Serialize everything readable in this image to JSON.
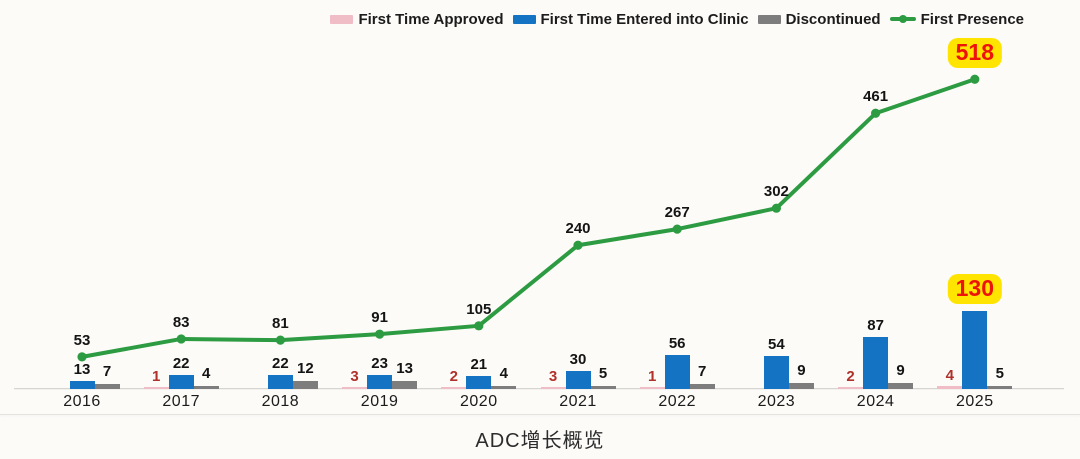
{
  "title": "ADC增长概览",
  "colors": {
    "approved_bar": "#f0bcc6",
    "clinic_bar": "#1573c4",
    "discontinued_bar": "#7d7d7d",
    "presence_line": "#2d9b41",
    "red_label": "#b0312a",
    "highlight_bg": "#ffe400",
    "highlight_text": "#ed1309"
  },
  "legend": {
    "items": [
      {
        "label": "First Time Approved",
        "swatch": "bar",
        "color": "#f0bcc6"
      },
      {
        "label": "First Time Entered into Clinic",
        "swatch": "bar",
        "color": "#1573c4"
      },
      {
        "label": "Discontinued",
        "swatch": "bar",
        "color": "#7d7d7d"
      },
      {
        "label": "First Presence",
        "swatch": "line",
        "color": "#2d9b41"
      }
    ]
  },
  "chart_data": {
    "type": "bar",
    "note": "grouped bars with overlaid line, no y-axis, no gridlines, value labels on every point",
    "title": "ADC增长概览",
    "xlabel": "",
    "ylabel": "",
    "ylim": [
      0,
      560
    ],
    "grid": false,
    "legend_position": "top-right",
    "categories": [
      "2016",
      "2017",
      "2018",
      "2019",
      "2020",
      "2021",
      "2022",
      "2023",
      "2024",
      "2025"
    ],
    "series": [
      {
        "name": "First Time Approved",
        "type": "bar",
        "color": "#f0bcc6",
        "label_color": "#b0312a",
        "values": [
          null,
          1,
          null,
          3,
          2,
          3,
          1,
          null,
          2,
          4
        ]
      },
      {
        "name": "First Time Entered into Clinic",
        "type": "bar",
        "color": "#1573c4",
        "label_color": "#141414",
        "values": [
          13,
          22,
          22,
          23,
          21,
          30,
          56,
          54,
          87,
          130
        ]
      },
      {
        "name": "Discontinued",
        "type": "bar",
        "color": "#7d7d7d",
        "label_color": "#141414",
        "values": [
          7,
          4,
          12,
          13,
          4,
          5,
          7,
          9,
          9,
          5
        ]
      },
      {
        "name": "First Presence",
        "type": "line",
        "color": "#2d9b41",
        "label_color": "#141414",
        "values": [
          53,
          83,
          81,
          91,
          105,
          240,
          267,
          302,
          461,
          518
        ]
      }
    ],
    "highlights": [
      {
        "series": "First Presence",
        "category": "2025",
        "value": 518
      },
      {
        "series": "First Time Entered into Clinic",
        "category": "2025",
        "value": 130
      }
    ]
  }
}
